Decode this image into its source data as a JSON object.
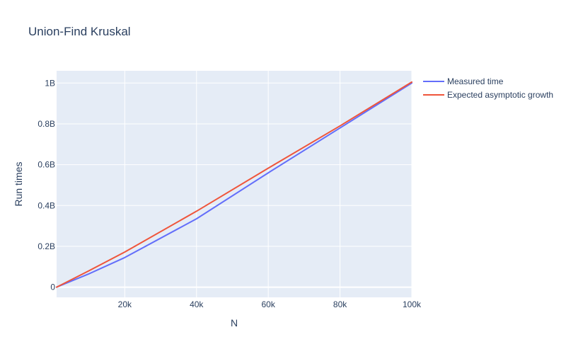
{
  "chart_data": {
    "type": "line",
    "title": "Union-Find Kruskal",
    "xlabel": "N",
    "ylabel": "Run times",
    "xlim": [
      1000,
      100000
    ],
    "ylim": [
      -0.05,
      1.06
    ],
    "x_ticks": [
      {
        "value": 20000,
        "label": "20k"
      },
      {
        "value": 40000,
        "label": "40k"
      },
      {
        "value": 60000,
        "label": "60k"
      },
      {
        "value": 80000,
        "label": "80k"
      },
      {
        "value": 100000,
        "label": "100k"
      }
    ],
    "y_ticks": [
      {
        "value": 0,
        "label": "0"
      },
      {
        "value": 0.2,
        "label": "0.2B"
      },
      {
        "value": 0.4,
        "label": "0.4B"
      },
      {
        "value": 0.6,
        "label": "0.6B"
      },
      {
        "value": 0.8,
        "label": "0.8B"
      },
      {
        "value": 1.0,
        "label": "1B"
      }
    ],
    "grid": true,
    "legend_position": "top-right-outside",
    "series": [
      {
        "name": "Measured time",
        "color": "#636efa",
        "x": [
          1000,
          10000,
          20000,
          40000,
          60000,
          80000,
          100000
        ],
        "y": [
          0.0,
          0.065,
          0.145,
          0.335,
          0.56,
          0.78,
          1.0
        ]
      },
      {
        "name": "Expected asymptotic growth",
        "color": "#ef553b",
        "x": [
          1000,
          10000,
          20000,
          40000,
          60000,
          80000,
          100000
        ],
        "y": [
          0.0,
          0.08,
          0.172,
          0.372,
          0.583,
          0.79,
          1.005
        ]
      }
    ]
  },
  "colors": {
    "plot_background": "#e5ecf6",
    "grid": "#ffffff",
    "text": "#2a3f5f"
  }
}
